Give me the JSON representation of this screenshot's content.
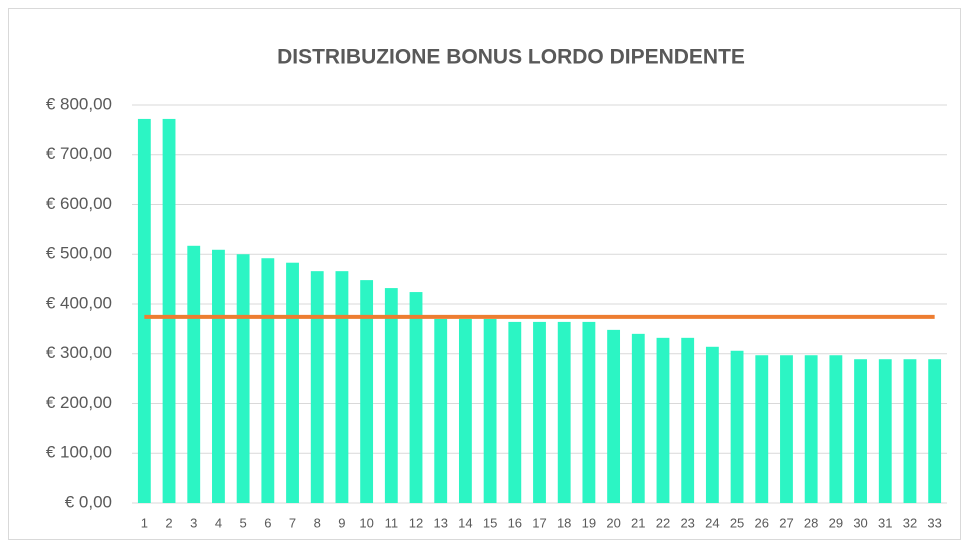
{
  "chart_data": {
    "type": "bar",
    "title": "DISTRIBUZIONE BONUS LORDO DIPENDENTE",
    "categories": [
      "1",
      "2",
      "3",
      "4",
      "5",
      "6",
      "7",
      "8",
      "9",
      "10",
      "11",
      "12",
      "13",
      "14",
      "15",
      "16",
      "17",
      "18",
      "19",
      "20",
      "21",
      "22",
      "23",
      "24",
      "25",
      "26",
      "27",
      "28",
      "29",
      "30",
      "31",
      "32",
      "33"
    ],
    "series": [
      {
        "type": "bar",
        "color": "#2cf5c4",
        "values": [
          772,
          772,
          517,
          509,
          500,
          492,
          483,
          466,
          466,
          448,
          432,
          424,
          370,
          370,
          370,
          364,
          364,
          364,
          364,
          348,
          340,
          332,
          332,
          314,
          306,
          297,
          297,
          297,
          297,
          289,
          289,
          289,
          289
        ]
      },
      {
        "type": "line",
        "color": "#ed7d31",
        "values": [
          374,
          374,
          374,
          374,
          374,
          374,
          374,
          374,
          374,
          374,
          374,
          374,
          374,
          374,
          374,
          374,
          374,
          374,
          374,
          374,
          374,
          374,
          374,
          374,
          374,
          374,
          374,
          374,
          374,
          374,
          374,
          374,
          374
        ]
      }
    ],
    "ylim": [
      0,
      800
    ],
    "yticks": [
      {
        "value": 0,
        "label": "€ 0,00"
      },
      {
        "value": 100,
        "label": "€ 100,00"
      },
      {
        "value": 200,
        "label": "€ 200,00"
      },
      {
        "value": 300,
        "label": "€ 300,00"
      },
      {
        "value": 400,
        "label": "€ 400,00"
      },
      {
        "value": 500,
        "label": "€ 500,00"
      },
      {
        "value": 600,
        "label": "€ 600,00"
      },
      {
        "value": 700,
        "label": "€ 700,00"
      },
      {
        "value": 800,
        "label": "€ 800,00"
      }
    ],
    "grid": true
  }
}
